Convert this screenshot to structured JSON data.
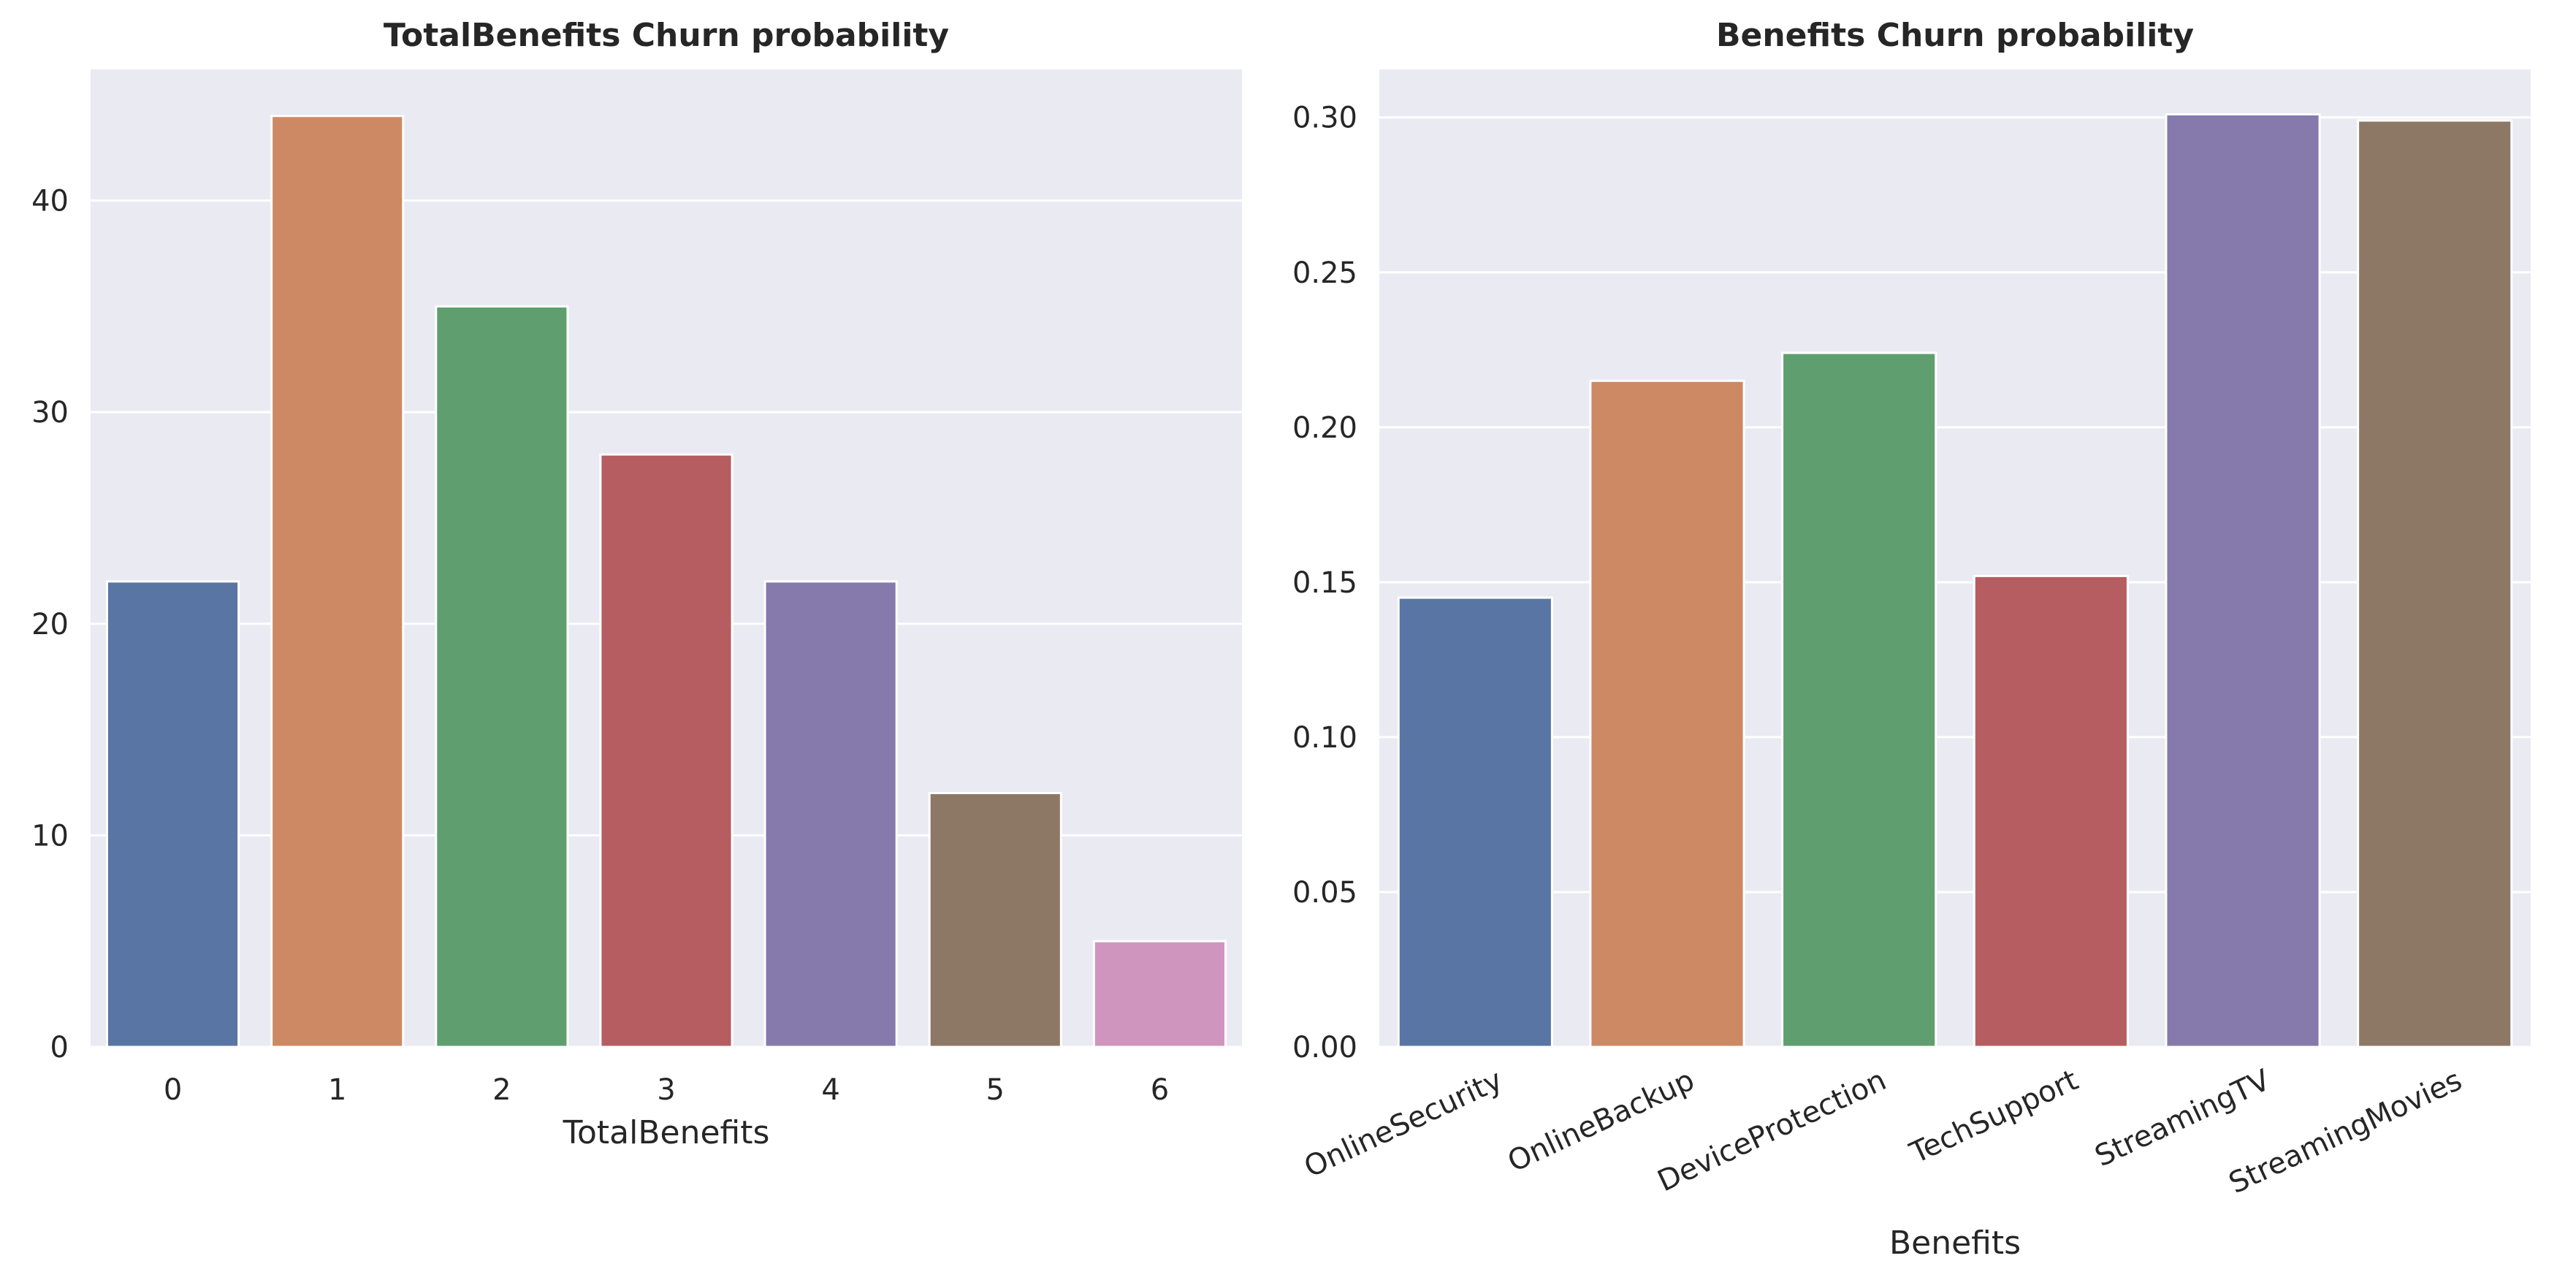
{
  "chart_data": [
    {
      "type": "bar",
      "title": "TotalBenefits Churn probability",
      "xlabel": "TotalBenefits",
      "ylabel": "",
      "categories": [
        "0",
        "1",
        "2",
        "3",
        "4",
        "5",
        "6"
      ],
      "values": [
        22,
        44,
        35,
        28,
        22,
        12,
        5
      ],
      "ylim": [
        0,
        46.2
      ],
      "yticks": [
        0,
        10,
        20,
        30,
        40
      ],
      "ytick_labels": [
        "0",
        "10",
        "20",
        "30",
        "40"
      ],
      "colors": [
        "#5875a4",
        "#cc8963",
        "#5f9e6e",
        "#b55d60",
        "#857aab",
        "#8d7866",
        "#d095bf"
      ],
      "grid": true,
      "background": "#eaeaf2"
    },
    {
      "type": "bar",
      "title": "Benefits Churn probability",
      "xlabel": "Benefits",
      "ylabel": "",
      "categories": [
        "OnlineSecurity",
        "OnlineBackup",
        "DeviceProtection",
        "TechSupport",
        "StreamingTV",
        "StreamingMovies"
      ],
      "values": [
        0.145,
        0.215,
        0.224,
        0.152,
        0.301,
        0.299
      ],
      "ylim": [
        0,
        0.3155
      ],
      "yticks": [
        0,
        0.05,
        0.1,
        0.15,
        0.2,
        0.25,
        0.3
      ],
      "ytick_labels": [
        "0.00",
        "0.05",
        "0.10",
        "0.15",
        "0.20",
        "0.25",
        "0.30"
      ],
      "xtick_rotation": -25,
      "colors": [
        "#5875a4",
        "#cc8963",
        "#5f9e6e",
        "#b55d60",
        "#857aab",
        "#8d7866"
      ],
      "grid": true,
      "background": "#eaeaf2"
    }
  ]
}
